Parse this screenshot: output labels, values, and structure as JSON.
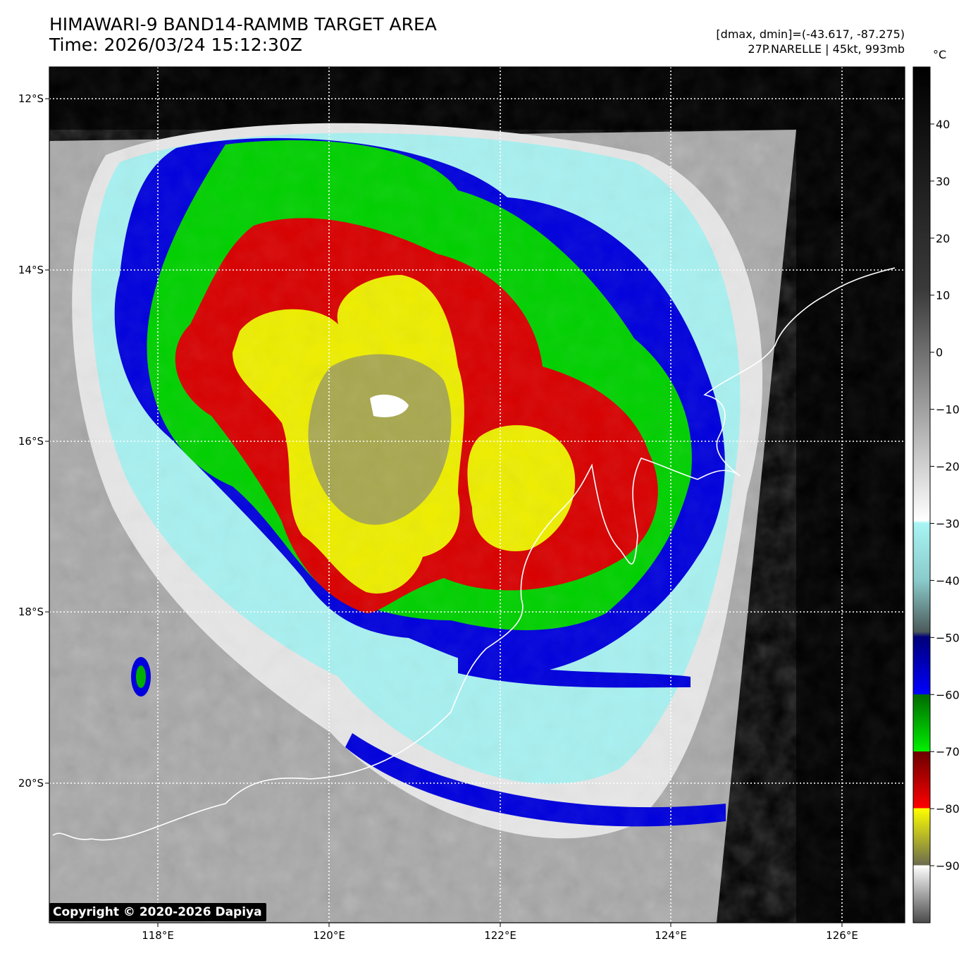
{
  "header": {
    "title_line1": "HIMAWARI-9 BAND14-RAMMB TARGET AREA",
    "title_line2": "Time: 2026/03/24 15:12:30Z",
    "info_line1": "[dmax, dmin]=(-43.617, -87.275)",
    "info_line2": "27P.NARELLE | 45kt, 993mb"
  },
  "map": {
    "lat_labels": [
      "12°S",
      "14°S",
      "16°S",
      "18°S",
      "20°S"
    ],
    "lon_labels": [
      "118°E",
      "120°E",
      "122°E",
      "124°E",
      "126°E"
    ],
    "extent": {
      "lon_min": 116.73,
      "lon_max": 126.73,
      "lat_min": -21.63,
      "lat_max": -11.63
    },
    "copyright": "Copyright © 2020-2026 Dapiya"
  },
  "colorbar": {
    "unit": "°C",
    "tick_labels": [
      "40",
      "30",
      "20",
      "10",
      "0",
      "−10",
      "−20",
      "−30",
      "−40",
      "−50",
      "−60",
      "−70",
      "−80",
      "−90"
    ],
    "range": [
      -100,
      50
    ]
  },
  "colors": {
    "blue": "#0000d8",
    "green": "#00d000",
    "red": "#d80000",
    "yellow": "#f0f000",
    "cyan": "#a8f0f0",
    "cloud_gray": "#cccccc"
  }
}
